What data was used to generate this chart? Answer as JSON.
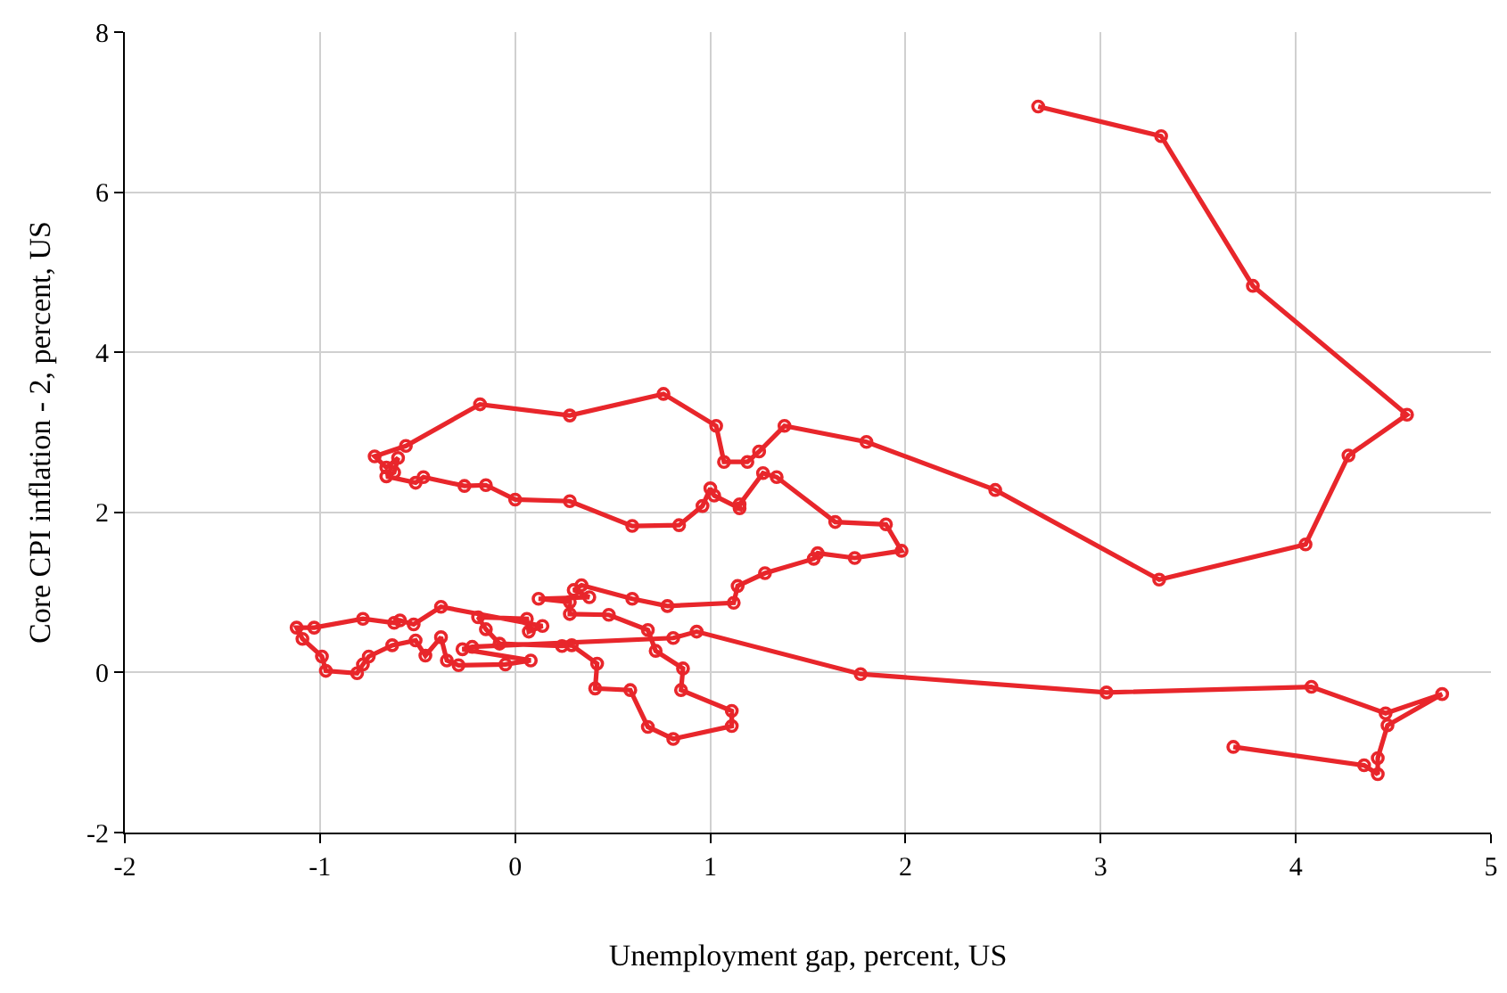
{
  "chart_data": {
    "type": "line",
    "xlabel": "Unemployment gap, percent, US",
    "ylabel": "Core CPI inflation - 2, percent, US",
    "xlim": [
      -2,
      5
    ],
    "xticks": [
      -2,
      -1,
      0,
      1,
      2,
      3,
      4,
      5
    ],
    "ylim": [
      -2,
      8
    ],
    "yticks": [
      -2,
      0,
      2,
      4,
      6,
      8
    ],
    "grid": true,
    "marker": "circle",
    "line_style": "solid",
    "series": [
      {
        "color": "#e8262b",
        "x": [
          2.68,
          3.31,
          3.78,
          4.57,
          4.27,
          4.05,
          3.3,
          2.46,
          1.8,
          1.38,
          1.25,
          1.19,
          1.07,
          1.03,
          0.76,
          0.28,
          -0.18,
          -0.56,
          -0.72,
          -0.66,
          -0.6,
          -0.62,
          -0.66,
          -0.51,
          -0.47,
          -0.26,
          -0.15,
          0.0,
          0.28,
          0.6,
          0.84,
          0.96,
          1.0,
          1.02,
          1.15,
          1.15,
          1.27,
          1.34,
          1.64,
          1.9,
          1.98,
          1.74,
          1.55,
          1.53,
          1.28,
          1.14,
          1.12,
          0.78,
          0.6,
          0.34,
          0.3,
          0.38,
          0.12,
          0.28,
          0.28,
          0.48,
          0.68,
          0.72,
          0.86,
          0.85,
          1.11,
          1.11,
          0.81,
          0.68,
          0.59,
          0.41,
          0.42,
          0.29,
          0.24,
          -0.08,
          -0.15,
          -0.19,
          0.06,
          0.07,
          0.14,
          -0.38,
          -0.52,
          -0.59,
          -0.62,
          -0.78,
          -1.03,
          -1.12,
          -1.09,
          -0.99,
          -0.97,
          -0.81,
          -0.78,
          -0.75,
          -0.63,
          -0.51,
          -0.46,
          -0.38,
          -0.35,
          -0.29,
          -0.05,
          0.08,
          -0.27,
          -0.22,
          0.81,
          0.93,
          1.77,
          3.03,
          4.08,
          4.46,
          4.75,
          4.47,
          4.42,
          4.42,
          4.35,
          3.68
        ],
        "values": [
          7.07,
          6.7,
          4.83,
          3.22,
          2.71,
          1.6,
          1.16,
          2.28,
          2.88,
          3.08,
          2.76,
          2.63,
          2.63,
          3.08,
          3.48,
          3.21,
          3.35,
          2.83,
          2.7,
          2.56,
          2.68,
          2.5,
          2.45,
          2.37,
          2.44,
          2.33,
          2.34,
          2.16,
          2.14,
          1.83,
          1.84,
          2.08,
          2.3,
          2.21,
          2.05,
          2.1,
          2.49,
          2.44,
          1.88,
          1.85,
          1.52,
          1.43,
          1.49,
          1.42,
          1.24,
          1.08,
          0.87,
          0.83,
          0.92,
          1.09,
          1.03,
          0.94,
          0.92,
          0.88,
          0.73,
          0.72,
          0.53,
          0.27,
          0.05,
          -0.22,
          -0.48,
          -0.67,
          -0.83,
          -0.68,
          -0.22,
          -0.2,
          0.11,
          0.34,
          0.33,
          0.36,
          0.54,
          0.69,
          0.67,
          0.51,
          0.58,
          0.82,
          0.6,
          0.65,
          0.62,
          0.67,
          0.56,
          0.56,
          0.42,
          0.2,
          0.02,
          -0.01,
          0.1,
          0.2,
          0.34,
          0.4,
          0.21,
          0.44,
          0.15,
          0.09,
          0.1,
          0.15,
          0.29,
          0.32,
          0.43,
          0.51,
          -0.02,
          -0.25,
          -0.18,
          -0.51,
          -0.27,
          -0.66,
          -1.07,
          -1.27,
          -1.16,
          -0.93
        ]
      }
    ]
  }
}
